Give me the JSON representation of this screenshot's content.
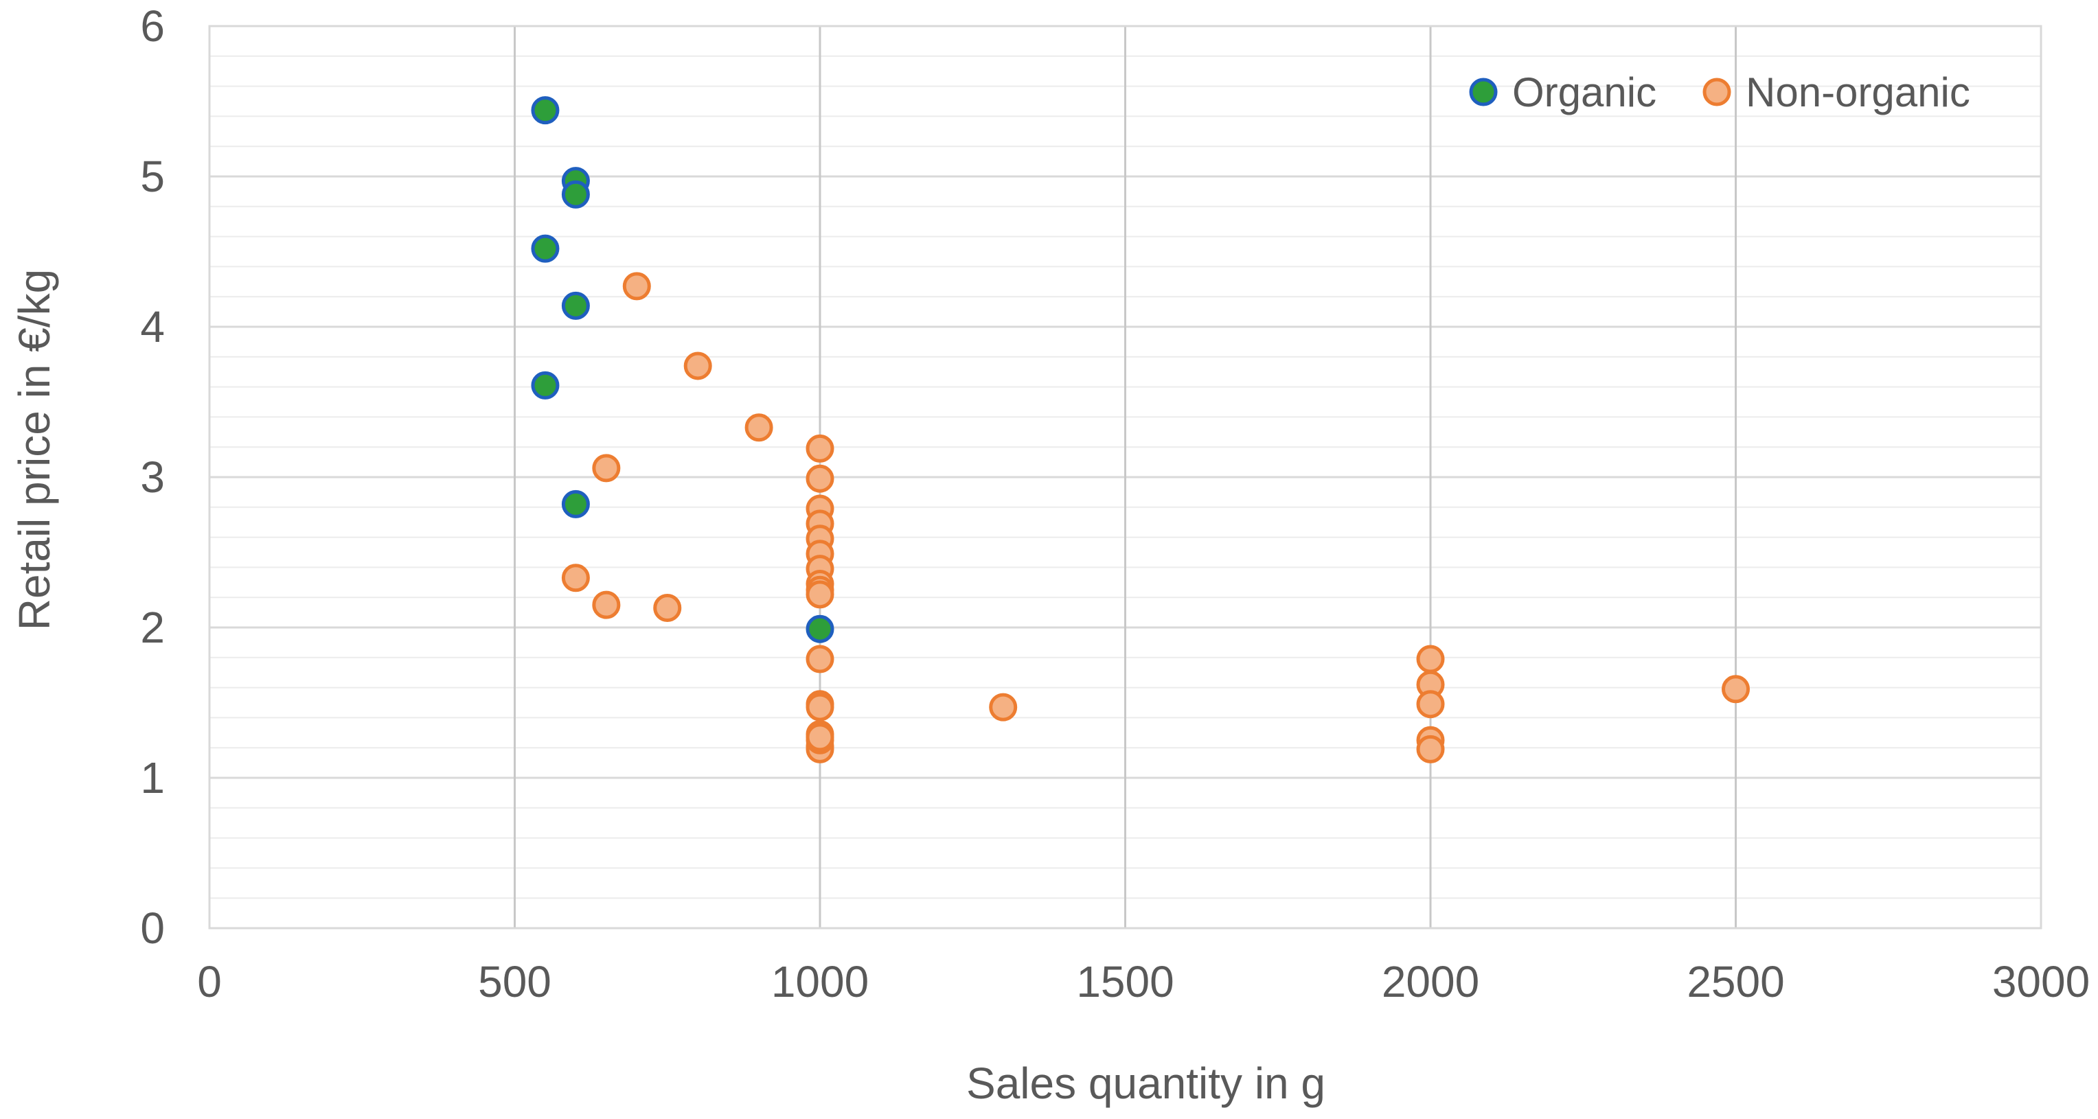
{
  "chart_data": {
    "type": "scatter",
    "title": "",
    "xlabel": "Sales quantity in g",
    "ylabel": "Retail price in €/kg",
    "xlim": [
      0,
      3000
    ],
    "ylim": [
      0,
      6
    ],
    "x_ticks": [
      "0",
      "500",
      "1000",
      "1500",
      "2000",
      "2500",
      "3000"
    ],
    "y_ticks": [
      "0",
      "1",
      "2",
      "3",
      "4",
      "5",
      "6"
    ],
    "grid": true,
    "legend_position": "top-right",
    "series": [
      {
        "name": "Organic",
        "fill": "#2e9e3a",
        "stroke": "#1f5fbf",
        "x": [
          550,
          600,
          600,
          550,
          600,
          550,
          600,
          1000
        ],
        "y": [
          5.44,
          4.97,
          4.88,
          4.52,
          4.14,
          3.61,
          2.82,
          1.99
        ]
      },
      {
        "name": "Non-organic",
        "fill": "#f5b183",
        "stroke": "#ed7d31",
        "x": [
          700,
          800,
          900,
          650,
          600,
          650,
          750,
          1000,
          1000,
          1000,
          1000,
          1000,
          1000,
          1000,
          1000,
          1000,
          1000,
          1000,
          1000,
          1000,
          1000,
          1000,
          1000,
          1000,
          1000,
          1300,
          2000,
          2000,
          2000,
          2000,
          2000,
          2500
        ],
        "y": [
          4.27,
          3.74,
          3.33,
          3.06,
          2.33,
          2.15,
          2.13,
          3.19,
          2.99,
          2.79,
          2.69,
          2.59,
          2.49,
          2.39,
          2.29,
          2.25,
          2.22,
          1.79,
          1.49,
          1.47,
          1.29,
          1.21,
          1.19,
          1.25,
          1.27,
          1.47,
          1.79,
          1.62,
          1.49,
          1.25,
          1.19,
          1.59
        ]
      }
    ]
  }
}
